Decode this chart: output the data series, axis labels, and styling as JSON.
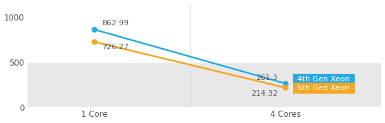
{
  "x_labels": [
    "1 Core",
    "4 Cores"
  ],
  "x_positions": [
    0,
    1
  ],
  "series": [
    {
      "name": "4th Gen Xeon",
      "values": [
        862.99,
        261.3
      ],
      "color": "#29ABE2",
      "marker": "o",
      "markersize": 5
    },
    {
      "name": "5th Gen Xeon",
      "values": [
        726.27,
        214.32
      ],
      "color": "#F5A623",
      "marker": "o",
      "markersize": 5
    }
  ],
  "ylim": [
    0,
    1150
  ],
  "yticks": [
    0,
    500,
    1000
  ],
  "upper_bg_color": "#ffffff",
  "lower_bg_color": "#e8e8e8",
  "fig_bg_color": "#ffffff",
  "data_label_fontsize": 8,
  "tick_fontsize": 8.5,
  "legend_fontsize": 8,
  "gridline_color": "#ffffff",
  "legend_4th_bg": "#29ABE2",
  "legend_5th_bg": "#F5A623",
  "divider_color": "#d0d0d0",
  "label_color": "#555555",
  "legend_text_color": "#ffffff",
  "xlim": [
    -0.35,
    1.5
  ]
}
